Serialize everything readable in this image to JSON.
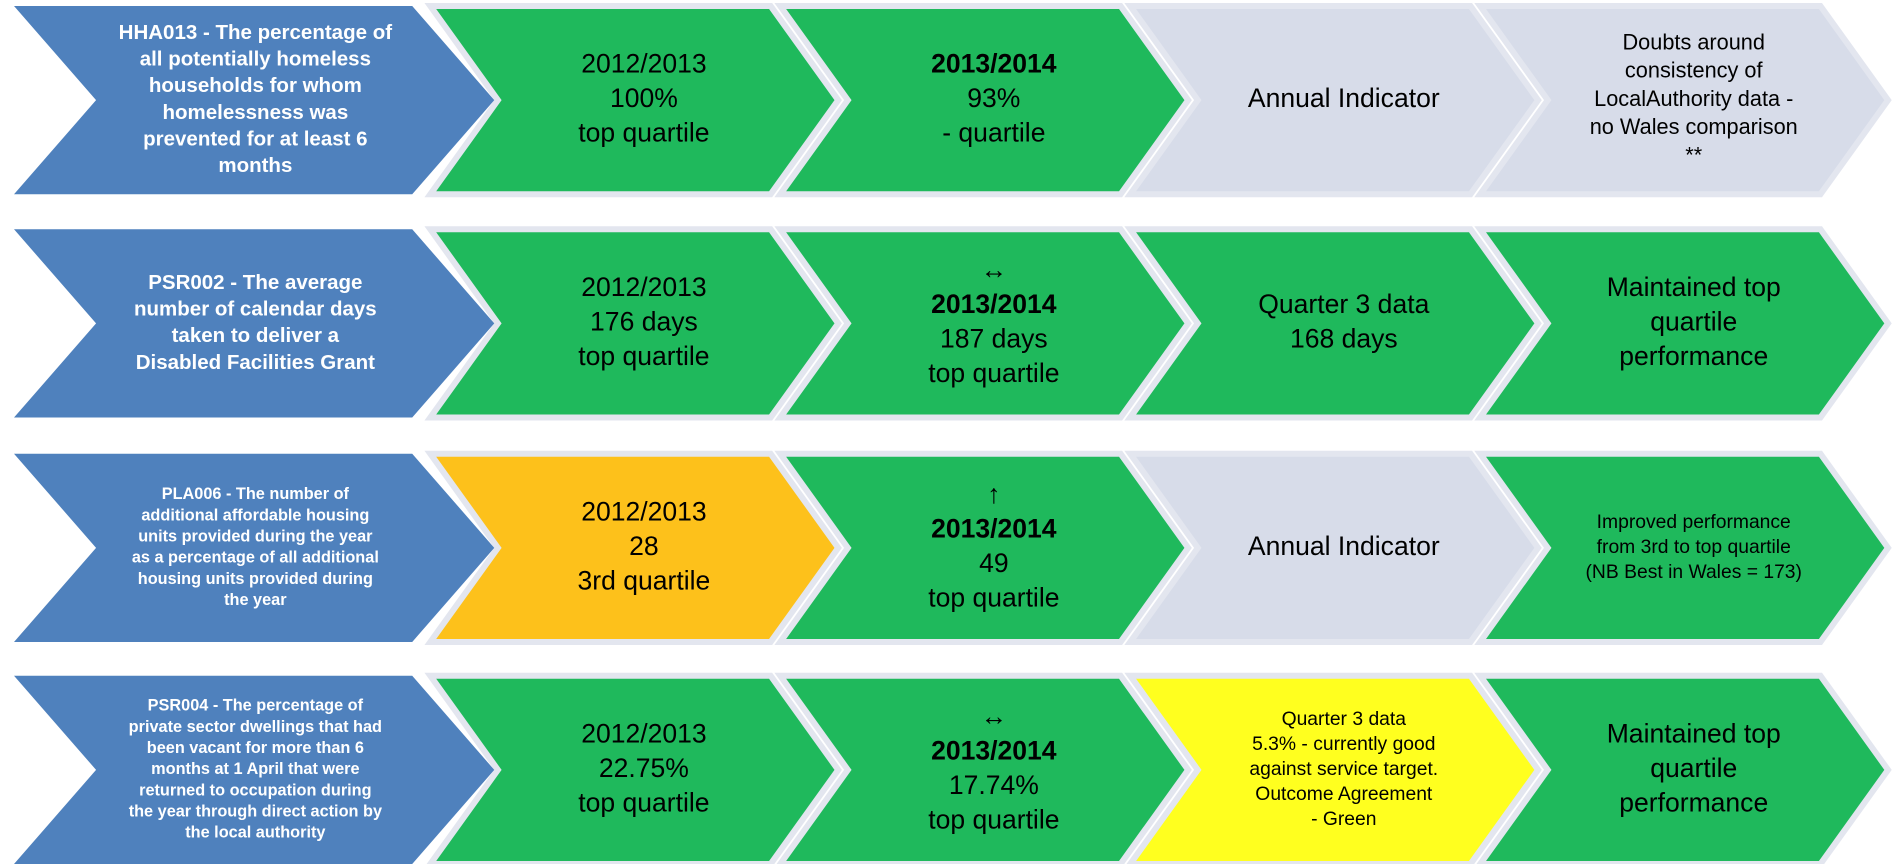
{
  "rows": [
    {
      "indicator": {
        "color": "#4f81bd",
        "lines": [
          "HHA013 - The percentage of",
          "all potentially homeless",
          "households for whom",
          "homelessness was",
          "prevented for at least 6",
          "months"
        ]
      },
      "cells": [
        {
          "color": "#1fb95c",
          "lines": [
            {
              "text": "2012/2013"
            },
            {
              "text": "100%"
            },
            {
              "text": "top quartile"
            }
          ]
        },
        {
          "color": "#1fb95c",
          "lines": [
            {
              "text": "2013/2014",
              "bold": true
            },
            {
              "text": "93%"
            },
            {
              "text": "-  quartile"
            }
          ]
        },
        {
          "color": "#d7dce9",
          "lines": [
            {
              "text": "Annual Indicator"
            }
          ]
        },
        {
          "color": "#d7dce9",
          "lines": [
            {
              "text": "Doubts around"
            },
            {
              "text": "consistency of"
            },
            {
              "text": "LocalAuthority data -"
            },
            {
              "text": "no Wales comparison"
            },
            {
              "text": "**"
            }
          ]
        }
      ]
    },
    {
      "indicator": {
        "color": "#4f81bd",
        "lines": [
          "PSR002 - The average",
          "number of calendar days",
          "taken to deliver a",
          "Disabled Facilities Grant"
        ]
      },
      "cells": [
        {
          "color": "#1fb95c",
          "lines": [
            {
              "text": "2012/2013"
            },
            {
              "text": "176 days"
            },
            {
              "text": "top quartile"
            }
          ]
        },
        {
          "color": "#1fb95c",
          "lines": [
            {
              "text": "↔"
            },
            {
              "text": "2013/2014",
              "bold": true
            },
            {
              "text": "187 days"
            },
            {
              "text": "top quartile"
            }
          ]
        },
        {
          "color": "#1fb95c",
          "lines": [
            {
              "text": "Quarter 3 data"
            },
            {
              "text": "168 days"
            }
          ]
        },
        {
          "color": "#1fb95c",
          "lines": [
            {
              "text": "Maintained top"
            },
            {
              "text": "quartile"
            },
            {
              "text": "performance"
            }
          ]
        }
      ]
    },
    {
      "indicator": {
        "color": "#4f81bd",
        "lines": [
          "PLA006 - The number of",
          "additional affordable housing",
          "units provided during the year",
          "as a percentage of all additional",
          "housing units provided during",
          "the year"
        ]
      },
      "cells": [
        {
          "color": "#fdc11b",
          "lines": [
            {
              "text": "2012/2013"
            },
            {
              "text": "28"
            },
            {
              "text": "3rd quartile"
            }
          ]
        },
        {
          "color": "#1fb95c",
          "lines": [
            {
              "text": "↑"
            },
            {
              "text": "2013/2014",
              "bold": true
            },
            {
              "text": "49"
            },
            {
              "text": "top quartile"
            }
          ]
        },
        {
          "color": "#d7dce9",
          "lines": [
            {
              "text": "Annual Indicator"
            }
          ]
        },
        {
          "color": "#1fb95c",
          "lines": [
            {
              "text": "Improved performance"
            },
            {
              "text": "from 3rd to top quartile"
            },
            {
              "text": "(NB Best in Wales = 173)"
            }
          ]
        }
      ]
    },
    {
      "indicator": {
        "color": "#4f81bd",
        "lines": [
          "PSR004 - The percentage of",
          "private sector dwellings that had",
          "been vacant for more than 6",
          "months at 1 April that were",
          "returned to occupation during",
          "the year through direct action by",
          "the local authority"
        ]
      },
      "cells": [
        {
          "color": "#1fb95c",
          "lines": [
            {
              "text": "2012/2013"
            },
            {
              "text": "22.75%"
            },
            {
              "text": "top quartile"
            }
          ]
        },
        {
          "color": "#1fb95c",
          "lines": [
            {
              "text": "↔"
            },
            {
              "text": "2013/2014",
              "bold": true
            },
            {
              "text": "17.74%"
            },
            {
              "text": "top quartile"
            }
          ]
        },
        {
          "color": "#ffff1f",
          "lines": [
            {
              "text": "Quarter 3 data"
            },
            {
              "text": "5.3% - currently good"
            },
            {
              "text": "against service target."
            },
            {
              "text": "Outcome Agreement"
            },
            {
              "text": "- Green"
            }
          ]
        },
        {
          "color": "#1fb95c",
          "lines": [
            {
              "text": "Maintained top"
            },
            {
              "text": "quartile"
            },
            {
              "text": "performance"
            }
          ]
        }
      ]
    }
  ]
}
